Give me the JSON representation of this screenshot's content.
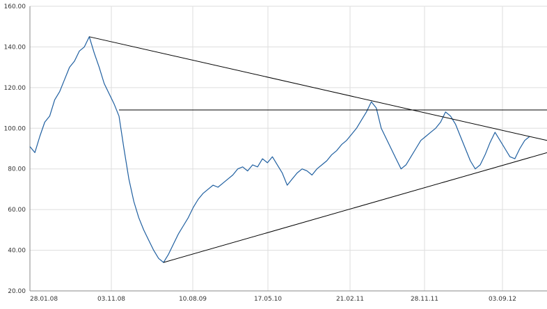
{
  "chart_data": {
    "type": "line",
    "title": "",
    "xlabel": "",
    "ylabel": "",
    "ylim": [
      20,
      160
    ],
    "grid": true,
    "y_ticks": [
      "160.00",
      "140.00",
      "120.00",
      "100.00",
      "80.00",
      "60.00",
      "40.00",
      "20.00"
    ],
    "x_ticks": [
      "28.01.08",
      "03.11.08",
      "10.08.09",
      "17.05.10",
      "21.02.11",
      "28.11.11",
      "03.09.12"
    ],
    "colors": {
      "series": "#1f5fa0",
      "trendline": "#000000",
      "grid": "#dddddd",
      "axis": "#888888"
    },
    "series": [
      {
        "values": [
          [
            0,
            91
          ],
          [
            0.02,
            88
          ],
          [
            0.04,
            96
          ],
          [
            0.06,
            103
          ],
          [
            0.08,
            106
          ],
          [
            0.1,
            114
          ],
          [
            0.12,
            118
          ],
          [
            0.14,
            124
          ],
          [
            0.16,
            130
          ],
          [
            0.18,
            133
          ],
          [
            0.2,
            138
          ],
          [
            0.22,
            140
          ],
          [
            0.24,
            145
          ],
          [
            0.26,
            137
          ],
          [
            0.28,
            130
          ],
          [
            0.3,
            122
          ],
          [
            0.32,
            117
          ],
          [
            0.34,
            112
          ],
          [
            0.36,
            106
          ],
          [
            0.38,
            90
          ],
          [
            0.4,
            75
          ],
          [
            0.42,
            64
          ],
          [
            0.44,
            56
          ],
          [
            0.46,
            50
          ],
          [
            0.48,
            45
          ],
          [
            0.5,
            40
          ],
          [
            0.52,
            36
          ],
          [
            0.54,
            34
          ],
          [
            0.56,
            38
          ],
          [
            0.58,
            43
          ],
          [
            0.6,
            48
          ],
          [
            0.62,
            52
          ],
          [
            0.64,
            56
          ],
          [
            0.66,
            61
          ],
          [
            0.68,
            65
          ],
          [
            0.7,
            68
          ],
          [
            0.72,
            70
          ],
          [
            0.74,
            72
          ],
          [
            0.76,
            71
          ],
          [
            0.78,
            73
          ],
          [
            0.8,
            75
          ],
          [
            0.82,
            77
          ],
          [
            0.84,
            80
          ],
          [
            0.86,
            81
          ],
          [
            0.88,
            79
          ],
          [
            0.9,
            82
          ],
          [
            0.92,
            81
          ],
          [
            0.94,
            85
          ],
          [
            0.96,
            83
          ],
          [
            0.98,
            86
          ],
          [
            1.0,
            82
          ],
          [
            1.02,
            78
          ],
          [
            1.04,
            72
          ],
          [
            1.06,
            75
          ],
          [
            1.08,
            78
          ],
          [
            1.1,
            80
          ],
          [
            1.12,
            79
          ],
          [
            1.14,
            77
          ],
          [
            1.16,
            80
          ],
          [
            1.18,
            82
          ],
          [
            1.2,
            84
          ],
          [
            1.22,
            87
          ],
          [
            1.24,
            89
          ],
          [
            1.26,
            92
          ],
          [
            1.28,
            94
          ],
          [
            1.3,
            97
          ],
          [
            1.32,
            100
          ],
          [
            1.34,
            104
          ],
          [
            1.36,
            108
          ],
          [
            1.38,
            113
          ],
          [
            1.4,
            110
          ],
          [
            1.42,
            100
          ],
          [
            1.44,
            95
          ],
          [
            1.46,
            90
          ],
          [
            1.48,
            85
          ],
          [
            1.5,
            80
          ],
          [
            1.52,
            82
          ],
          [
            1.54,
            86
          ],
          [
            1.56,
            90
          ],
          [
            1.58,
            94
          ],
          [
            1.6,
            96
          ],
          [
            1.62,
            98
          ],
          [
            1.64,
            100
          ],
          [
            1.66,
            103
          ],
          [
            1.68,
            108
          ],
          [
            1.7,
            106
          ],
          [
            1.72,
            102
          ],
          [
            1.74,
            96
          ],
          [
            1.76,
            90
          ],
          [
            1.78,
            84
          ],
          [
            1.8,
            80
          ],
          [
            1.82,
            82
          ],
          [
            1.84,
            87
          ],
          [
            1.86,
            93
          ],
          [
            1.88,
            98
          ],
          [
            1.9,
            94
          ],
          [
            1.92,
            90
          ],
          [
            1.94,
            86
          ],
          [
            1.96,
            85
          ],
          [
            1.98,
            90
          ],
          [
            2.0,
            94
          ],
          [
            2.02,
            96
          ]
        ]
      }
    ]
  }
}
